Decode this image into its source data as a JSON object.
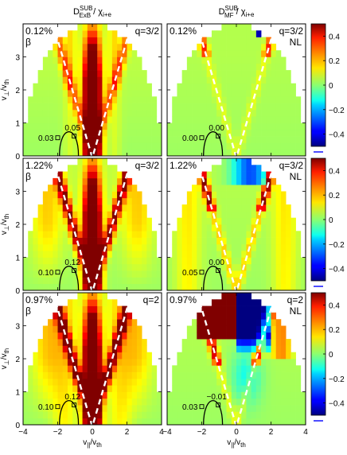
{
  "titles": {
    "left": {
      "base": "D",
      "sup": "SUB",
      "sub": "ExB",
      "div": " / χ",
      "div_sub": "i+e"
    },
    "right": {
      "base": "D",
      "sup": "SUB",
      "sub": "MF",
      "div": " / χ",
      "div_sub": "i+e"
    }
  },
  "axes": {
    "ylabel": {
      "base": "v",
      "sub": "⊥",
      "div": "/v",
      "div_sub": "th"
    },
    "xlabel": {
      "base": "v",
      "sub": "||",
      "div": "/v",
      "div_sub": "th"
    },
    "xlim": [
      -4,
      4
    ],
    "ylim": [
      0,
      4
    ],
    "xticks": [
      "−4",
      "−2",
      "0",
      "2",
      "4"
    ],
    "yticks": [
      "0",
      "1",
      "2",
      "3"
    ]
  },
  "colorbar": {
    "ticks": [
      "0.4",
      "0.2",
      "0",
      "−0.2",
      "−0.4"
    ],
    "range": [
      -0.5,
      0.5
    ],
    "colormap": "jet"
  },
  "chart_data": [
    {
      "type": "heatmap",
      "quantity": "ExB",
      "row": 1,
      "beta_pct": "0.12%",
      "beta_symbol": "β",
      "q_label": "q=3/2",
      "nl_label": "",
      "contour_labels": [
        "0.03",
        "0.05"
      ],
      "dashed_v_slope": 1.78,
      "vertex_v_perp": -0.05
    },
    {
      "type": "heatmap",
      "quantity": "MF",
      "row": 1,
      "beta_pct": "0.12%",
      "beta_symbol": "",
      "q_label": "q=3/2",
      "nl_label": "NL",
      "contour_labels": [
        "0.00",
        "0.00"
      ],
      "dashed_v_slope": 1.78,
      "vertex_v_perp": -0.05
    },
    {
      "type": "heatmap",
      "quantity": "ExB",
      "row": 2,
      "beta_pct": "1.22%",
      "beta_symbol": "β",
      "q_label": "q=3/2",
      "nl_label": "",
      "contour_labels": [
        "0.10",
        "0.12"
      ],
      "dashed_v_slope": 1.78,
      "vertex_v_perp": -0.05
    },
    {
      "type": "heatmap",
      "quantity": "MF",
      "row": 2,
      "beta_pct": "1.22%",
      "beta_symbol": "",
      "q_label": "q=3/2",
      "nl_label": "NL",
      "contour_labels": [
        "0.05",
        "0.00"
      ],
      "dashed_v_slope": 1.78,
      "vertex_v_perp": -0.05
    },
    {
      "type": "heatmap",
      "quantity": "ExB",
      "row": 3,
      "beta_pct": "0.97%",
      "beta_symbol": "β",
      "q_label": "q=2",
      "nl_label": "",
      "contour_labels": [
        "0.10",
        "0.12"
      ],
      "dashed_v_slope": 1.78,
      "vertex_v_perp": -0.05
    },
    {
      "type": "heatmap",
      "quantity": "MF",
      "row": 3,
      "beta_pct": "0.97%",
      "beta_symbol": "",
      "q_label": "q=2",
      "nl_label": "NL",
      "contour_labels": [
        "0.03",
        "−0.01"
      ],
      "dashed_v_slope": 1.78,
      "vertex_v_perp": -0.05
    }
  ]
}
